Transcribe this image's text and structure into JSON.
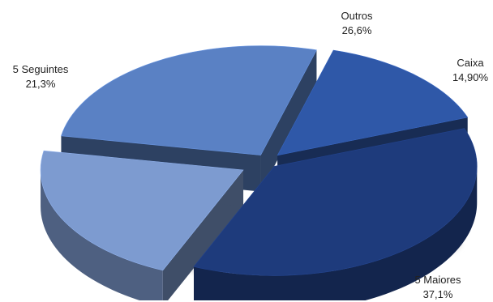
{
  "chart_data": {
    "type": "pie",
    "style": "3d-exploded",
    "legend": "none",
    "slices": [
      {
        "label": "Caixa",
        "value_label": "14,90%",
        "value": 14.9,
        "color": "#2f58a8"
      },
      {
        "label": "5 Maiores",
        "value_label": "37,1%",
        "value": 37.1,
        "color": "#1e3b7c"
      },
      {
        "label": "5 Seguintes",
        "value_label": "21,3%",
        "value": 21.3,
        "color": "#7d9bd0"
      },
      {
        "label": "Outros",
        "value_label": "26,6%",
        "value": 26.6,
        "color": "#5a81c4"
      }
    ]
  }
}
